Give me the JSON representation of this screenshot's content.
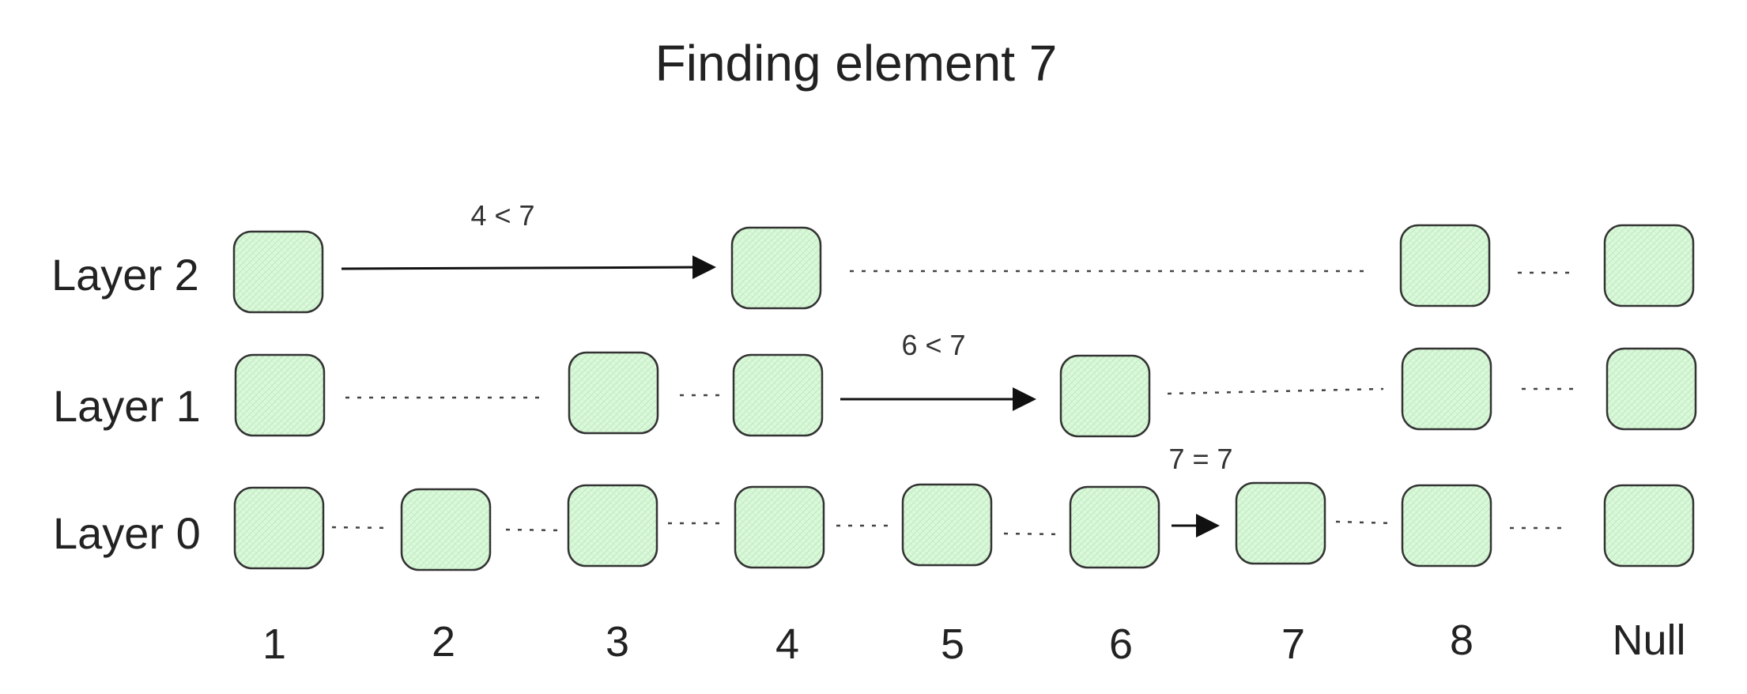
{
  "title": "Finding element 7",
  "layers": [
    {
      "label": "Layer 2"
    },
    {
      "label": "Layer 1"
    },
    {
      "label": "Layer 0"
    }
  ],
  "indices": [
    "1",
    "2",
    "3",
    "4",
    "5",
    "6",
    "7",
    "8",
    "Null"
  ],
  "comparisons": [
    {
      "label": "4 < 7"
    },
    {
      "label": "6 < 7"
    },
    {
      "label": "7 = 7"
    }
  ],
  "colors": {
    "node_fill": "#d8f7d8",
    "node_stroke": "#333333",
    "arrow": "#111111"
  }
}
